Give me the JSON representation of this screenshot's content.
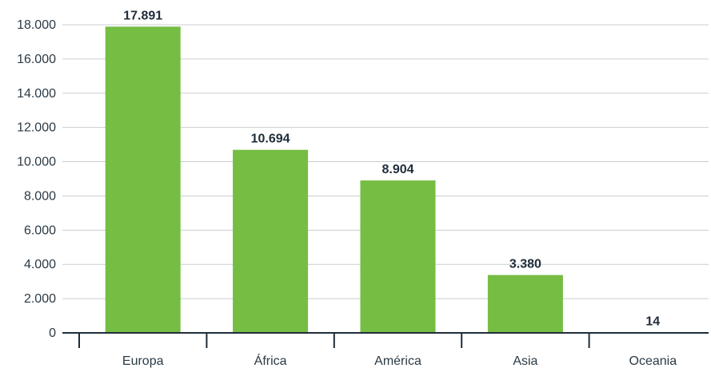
{
  "chart_data": {
    "type": "bar",
    "title": "",
    "xlabel": "",
    "ylabel": "",
    "categories": [
      "Europa",
      "África",
      "América",
      "Asia",
      "Oceania"
    ],
    "values": [
      17891,
      10694,
      8904,
      3380,
      14
    ],
    "value_labels": [
      "17.891",
      "10.694",
      "8.904",
      "3.380",
      "14"
    ],
    "ylim": [
      0,
      18000
    ],
    "yticks": [
      0,
      2000,
      4000,
      6000,
      8000,
      10000,
      12000,
      14000,
      16000,
      18000
    ],
    "ytick_labels": [
      "0",
      "2.000",
      "4.000",
      "6.000",
      "8.000",
      "10.000",
      "12.000",
      "14.000",
      "16.000",
      "18.000"
    ],
    "grid": true,
    "legend": "none",
    "colors": {
      "bar": "#76bd43",
      "axis": "#1f2d3a",
      "grid": "#c9cdd1",
      "text": "#2b3a45"
    }
  }
}
